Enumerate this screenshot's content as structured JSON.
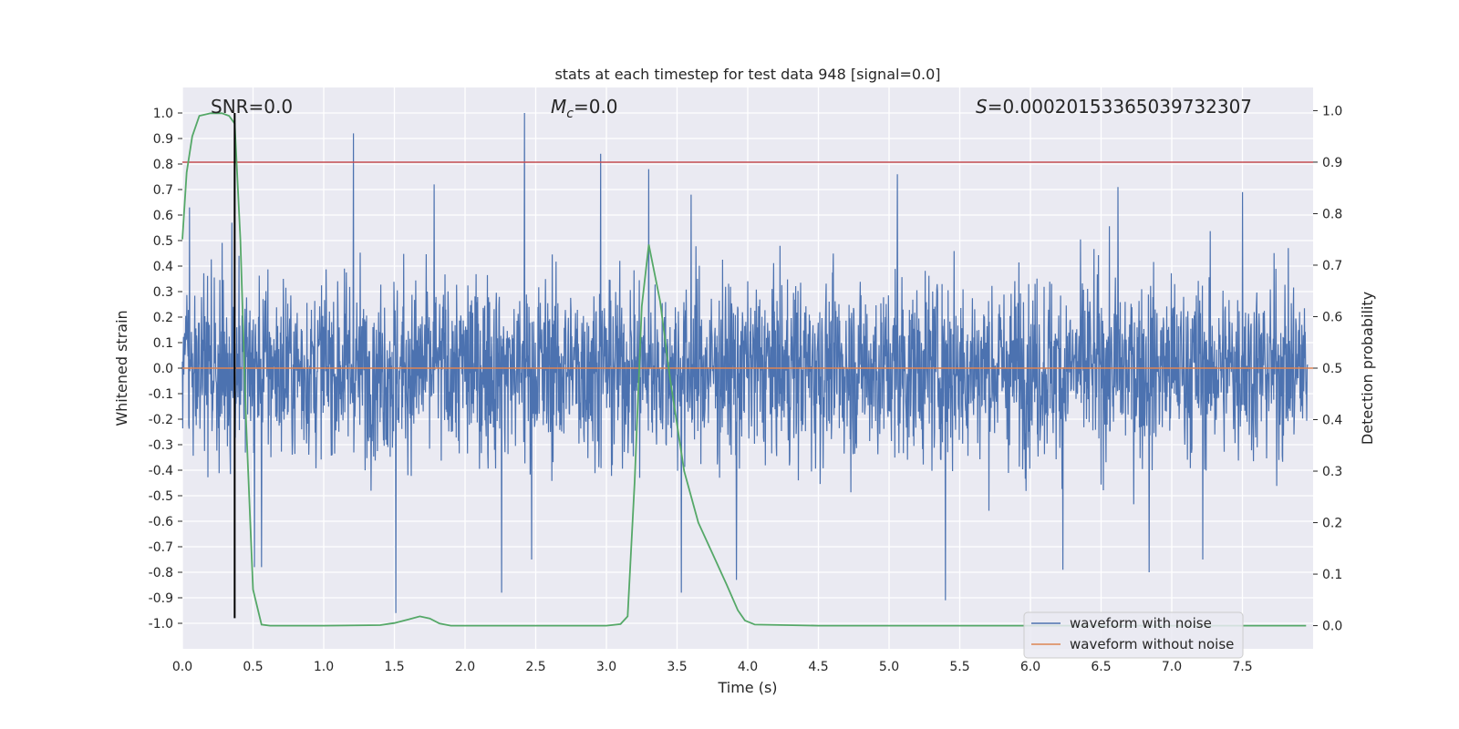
{
  "chart_data": {
    "type": "line",
    "title": "stats at each timestep for test data 948 [signal=0.0]",
    "xlabel": "Time (s)",
    "ylabel_left": "Whitened strain",
    "ylabel_right": "Detection probability",
    "xlim": [
      0.0,
      8.0
    ],
    "ylim_left": [
      -1.1,
      1.1
    ],
    "ylim_right": [
      -0.045,
      1.045
    ],
    "grid": true,
    "x_ticks": [
      "0.0",
      "0.5",
      "1.0",
      "1.5",
      "2.0",
      "2.5",
      "3.0",
      "3.5",
      "4.0",
      "4.5",
      "5.0",
      "5.5",
      "6.0",
      "6.5",
      "7.0",
      "7.5"
    ],
    "y_left_ticks": [
      "1.0",
      "0.9",
      "0.8",
      "0.7",
      "0.6",
      "0.5",
      "0.4",
      "0.3",
      "0.2",
      "0.1",
      "0.0",
      "-0.1",
      "-0.2",
      "-0.3",
      "-0.4",
      "-0.5",
      "-0.6",
      "-0.7",
      "-0.8",
      "-0.9",
      "-1.0"
    ],
    "y_right_ticks": [
      "1.0",
      "0.9",
      "0.8",
      "0.7",
      "0.6",
      "0.5",
      "0.4",
      "0.3",
      "0.2",
      "0.1",
      "0.0"
    ],
    "annotations": {
      "snr": "SNR=0.0",
      "mc_symbol": "M",
      "mc_sub": "c",
      "mc_value": "=0.0",
      "s_symbol": "S",
      "s_value": "=0.00020153365039732307"
    },
    "threshold": {
      "value_right": 0.9,
      "color": "#c44e52"
    },
    "marker_time": 0.37,
    "series": [
      {
        "name": "waveform with noise",
        "axis": "left",
        "color": "#4c72b0",
        "kind": "noisy_strain",
        "envelope": 0.42,
        "peaks": [
          {
            "x": 0.05,
            "y": 0.63
          },
          {
            "x": 0.35,
            "y": 0.57
          },
          {
            "x": 0.4,
            "y": 0.44
          },
          {
            "x": 1.21,
            "y": 0.92
          },
          {
            "x": 1.78,
            "y": 0.72
          },
          {
            "x": 2.42,
            "y": 1.0
          },
          {
            "x": 2.96,
            "y": 0.84
          },
          {
            "x": 3.3,
            "y": 0.78
          },
          {
            "x": 3.6,
            "y": 0.68
          },
          {
            "x": 5.06,
            "y": 0.76
          },
          {
            "x": 6.62,
            "y": 0.71
          },
          {
            "x": 7.5,
            "y": 0.69
          },
          {
            "x": 0.51,
            "y": -0.78
          },
          {
            "x": 0.56,
            "y": -0.78
          },
          {
            "x": 1.51,
            "y": -0.96
          },
          {
            "x": 2.26,
            "y": -0.88
          },
          {
            "x": 2.47,
            "y": -0.75
          },
          {
            "x": 3.53,
            "y": -0.88
          },
          {
            "x": 3.92,
            "y": -0.83
          },
          {
            "x": 5.4,
            "y": -0.91
          },
          {
            "x": 6.84,
            "y": -0.8
          },
          {
            "x": 7.22,
            "y": -0.75
          },
          {
            "x": 6.23,
            "y": -0.79
          }
        ]
      },
      {
        "name": "waveform without noise",
        "axis": "left",
        "color": "#dd8452",
        "kind": "flat",
        "value": 0.0
      },
      {
        "name": "detection probability",
        "axis": "right",
        "color": "#55a868",
        "kind": "line",
        "x": [
          0.0,
          0.03,
          0.07,
          0.12,
          0.2,
          0.28,
          0.33,
          0.37,
          0.41,
          0.45,
          0.5,
          0.56,
          0.62,
          1.0,
          1.4,
          1.5,
          1.6,
          1.68,
          1.75,
          1.82,
          1.9,
          2.0,
          2.5,
          3.0,
          3.1,
          3.15,
          3.2,
          3.25,
          3.3,
          3.38,
          3.45,
          3.55,
          3.65,
          3.75,
          3.85,
          3.93,
          3.98,
          4.05,
          4.5,
          5.0,
          6.0,
          7.0,
          7.95
        ],
        "values": [
          0.75,
          0.88,
          0.95,
          0.99,
          0.995,
          0.995,
          0.99,
          0.975,
          0.75,
          0.4,
          0.07,
          0.002,
          0.0,
          0.0,
          0.001,
          0.005,
          0.012,
          0.018,
          0.014,
          0.004,
          0.0,
          0.0,
          0.0,
          0.0,
          0.003,
          0.018,
          0.28,
          0.62,
          0.74,
          0.63,
          0.48,
          0.3,
          0.2,
          0.14,
          0.08,
          0.03,
          0.01,
          0.002,
          0.0,
          0.0,
          0.0,
          0.0,
          0.0
        ]
      }
    ],
    "legend": {
      "placement": "lower-right",
      "entries": [
        "waveform with noise",
        "waveform without noise"
      ]
    }
  }
}
